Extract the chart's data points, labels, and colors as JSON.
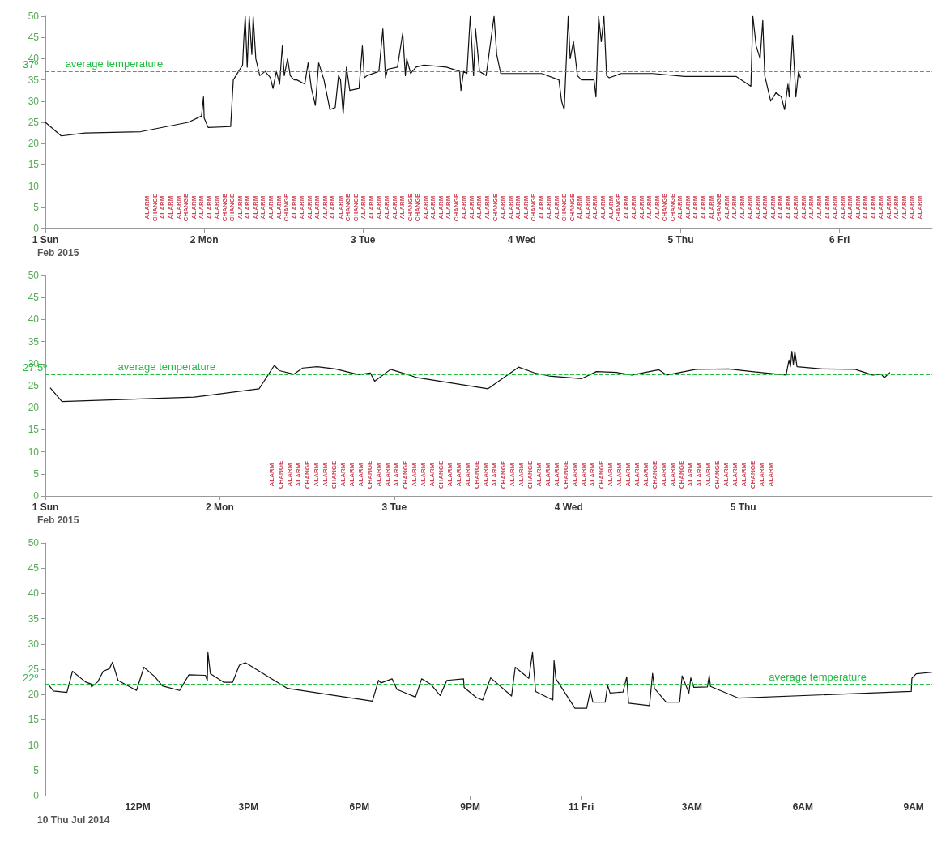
{
  "chart_data": [
    {
      "type": "line",
      "xlabel": "Feb 2015",
      "xlim": [
        "2015-02-01T00:00",
        "2015-02-06T14:00"
      ],
      "ylim": [
        0,
        50
      ],
      "xticks": [
        {
          "value": "2015-02-01T00:00",
          "label": "1 Sun"
        },
        {
          "value": "2015-02-02T00:00",
          "label": "2 Mon"
        },
        {
          "value": "2015-02-03T00:00",
          "label": "3 Tue"
        },
        {
          "value": "2015-02-04T00:00",
          "label": "4 Wed"
        },
        {
          "value": "2015-02-05T00:00",
          "label": "5 Thu"
        },
        {
          "value": "2015-02-06T00:00",
          "label": "6 Fri"
        }
      ],
      "yticks": [
        0,
        5,
        10,
        15,
        20,
        25,
        30,
        35,
        40,
        45,
        50
      ],
      "series": [
        {
          "color": "#111111",
          "x": [
            "2015-02-01T00:00",
            "2015-02-01T02:24",
            "2015-02-01T06:00",
            "2015-02-01T14:24",
            "2015-02-01T21:36",
            "2015-02-01T23:36",
            "2015-02-01T23:54",
            "2015-02-02T00:00",
            "2015-02-02T00:36",
            "2015-02-02T04:00",
            "2015-02-02T04:24",
            "2015-02-02T05:12",
            "2015-02-02T05:48",
            "2015-02-02T06:00",
            "2015-02-02T06:12",
            "2015-02-02T06:30",
            "2015-02-02T06:48",
            "2015-02-02T07:12",
            "2015-02-02T07:24",
            "2015-02-02T07:48",
            "2015-02-02T08:24",
            "2015-02-02T09:12",
            "2015-02-02T10:00",
            "2015-02-02T10:24",
            "2015-02-02T10:54",
            "2015-02-02T11:24",
            "2015-02-02T11:48",
            "2015-02-02T12:06",
            "2015-02-02T12:36",
            "2015-02-02T13:00",
            "2015-02-02T13:36",
            "2015-02-02T14:00",
            "2015-02-02T15:12",
            "2015-02-02T15:42",
            "2015-02-02T16:12",
            "2015-02-02T16:48",
            "2015-02-02T17:18",
            "2015-02-02T18:06",
            "2015-02-02T19:00",
            "2015-02-02T19:48",
            "2015-02-02T20:18",
            "2015-02-02T20:36",
            "2015-02-02T21:00",
            "2015-02-02T21:30",
            "2015-02-02T22:00",
            "2015-02-02T23:24",
            "2015-02-02T23:54",
            "2015-02-03T00:12",
            "2015-02-03T00:36",
            "2015-02-03T02:24",
            "2015-02-03T03:00",
            "2015-02-03T03:24",
            "2015-02-03T03:42",
            "2015-02-03T05:12",
            "2015-02-03T06:00",
            "2015-02-03T06:24",
            "2015-02-03T06:36",
            "2015-02-03T07:12",
            "2015-02-03T08:00",
            "2015-02-03T09:12",
            "2015-02-03T12:36",
            "2015-02-03T14:36",
            "2015-02-03T14:48",
            "2015-02-03T15:12",
            "2015-02-03T15:42",
            "2015-02-03T16:12",
            "2015-02-03T16:42",
            "2015-02-03T17:00",
            "2015-02-03T17:36",
            "2015-02-03T18:36",
            "2015-02-03T19:48",
            "2015-02-03T20:12",
            "2015-02-03T20:48",
            "2015-02-03T21:36",
            "2015-02-04T03:00",
            "2015-02-04T05:36",
            "2015-02-04T06:00",
            "2015-02-04T06:24",
            "2015-02-04T07:00",
            "2015-02-04T07:18",
            "2015-02-04T07:48",
            "2015-02-04T08:24",
            "2015-02-04T09:00",
            "2015-02-04T10:54",
            "2015-02-04T11:12",
            "2015-02-04T11:36",
            "2015-02-04T12:00",
            "2015-02-04T12:24",
            "2015-02-04T12:48",
            "2015-02-04T13:12",
            "2015-02-04T15:00",
            "2015-02-04T19:48",
            "2015-02-05T00:36",
            "2015-02-05T05:24",
            "2015-02-05T08:24",
            "2015-02-05T10:36",
            "2015-02-05T10:54",
            "2015-02-05T11:24",
            "2015-02-05T12:00",
            "2015-02-05T12:24",
            "2015-02-05T12:42",
            "2015-02-05T13:36",
            "2015-02-05T14:24",
            "2015-02-05T15:12",
            "2015-02-05T15:42",
            "2015-02-05T16:12",
            "2015-02-05T16:24",
            "2015-02-05T16:54",
            "2015-02-05T17:24",
            "2015-02-05T17:48",
            "2015-02-05T18:06"
          ],
          "values": [
            25,
            21.8,
            22.5,
            22.8,
            25,
            26.5,
            31,
            26,
            23.8,
            24,
            35,
            37,
            38.5,
            45,
            50,
            38,
            50,
            41,
            50,
            40,
            36,
            37,
            35.5,
            33,
            37,
            34,
            43,
            36,
            40,
            36,
            35,
            35,
            34,
            39,
            33,
            29,
            39,
            35,
            28,
            28.5,
            36,
            35,
            27,
            38,
            32.5,
            33,
            43,
            35.5,
            36,
            37,
            47,
            35.5,
            37.5,
            38,
            46,
            36,
            40,
            36.5,
            38,
            38.5,
            38,
            37,
            32.5,
            37,
            36.5,
            50,
            36,
            47,
            37,
            36,
            50,
            41,
            36.5,
            36.5,
            36.5,
            35,
            30,
            28,
            50,
            40,
            44,
            36,
            35,
            35,
            31,
            50,
            44,
            50,
            36,
            35.5,
            36.5,
            36.5,
            35.8,
            35.8,
            35.8,
            33.5,
            50,
            43,
            40,
            49,
            36,
            30,
            32,
            31,
            28,
            34,
            31,
            45.5,
            31,
            37,
            35.5
          ]
        }
      ],
      "ref_lines": [
        {
          "axis": "y",
          "value": 37,
          "label": "37º",
          "color": "#22bb44",
          "line_style": "dashed"
        }
      ],
      "annotations": [
        {
          "text": "average temperature",
          "x": "2015-02-01T10:24",
          "y": 37
        },
        "ALARM",
        "CHANGE",
        "ALARM",
        "ALARM",
        "ALARM",
        "CHANGE",
        "ALARM",
        "ALARM",
        "ALARM",
        "ALARM",
        "CHANGE",
        "CHANGE",
        "ALARM",
        "ALARM",
        "ALARM",
        "ALARM",
        "ALARM",
        "ALARM",
        "CHANGE",
        "ALARM",
        "ALARM",
        "ALARM",
        "ALARM",
        "ALARM",
        "ALARM",
        "ALARM",
        "CHANGE",
        "CHANGE",
        "ALARM",
        "ALARM",
        "ALARM",
        "ALARM",
        "ALARM",
        "ALARM",
        "CHANGE",
        "CHANGE",
        "ALARM",
        "ALARM",
        "ALARM",
        "ALARM",
        "CHANGE",
        "ALARM",
        "ALARM",
        "ALARM",
        "ALARM",
        "CHANGE",
        "ALARM",
        "ALARM",
        "ALARM",
        "ALARM",
        "CHANGE",
        "ALARM",
        "ALARM",
        "ALARM",
        "CHANGE",
        "CHANGE",
        "ALARM",
        "ALARM",
        "ALARM",
        "ALARM",
        "ALARM",
        "CHANGE",
        "ALARM",
        "ALARM",
        "ALARM",
        "ALARM",
        "ALARM",
        "CHANGE",
        "CHANGE",
        "ALARM",
        "ALARM",
        "ALARM",
        "ALARM",
        "ALARM",
        "CHANGE",
        "ALARM",
        "ALARM",
        "ALARM",
        "ALARM",
        "ALARM",
        "ALARM",
        "ALARM",
        "ALARM",
        "ALARM",
        "ALARM",
        "ALARM",
        "ALARM",
        "ALARM",
        "ALARM",
        "ALARM",
        "ALARM",
        "ALARM",
        "ALARM",
        "ALARM",
        "ALARM",
        "ALARM",
        "ALARM",
        "ALARM",
        "ALARM",
        "ALARM",
        "ALARM"
      ]
    },
    {
      "type": "line",
      "xlabel": "Feb 2015",
      "xlim": [
        "2015-02-01T00:00",
        "2015-02-06T02:00"
      ],
      "ylim": [
        0,
        50
      ],
      "xticks": [
        {
          "value": "2015-02-01T00:00",
          "label": "1 Sun"
        },
        {
          "value": "2015-02-02T00:00",
          "label": "2 Mon"
        },
        {
          "value": "2015-02-03T00:00",
          "label": "3 Tue"
        },
        {
          "value": "2015-02-04T00:00",
          "label": "4 Wed"
        },
        {
          "value": "2015-02-05T00:00",
          "label": "5 Thu"
        }
      ],
      "yticks": [
        0,
        5,
        10,
        15,
        20,
        25,
        30,
        35,
        40,
        45,
        50
      ],
      "series": [
        {
          "color": "#111111",
          "x": [
            "2015-02-01T00:40",
            "2015-02-01T02:17",
            "2015-02-01T20:30",
            "2015-02-02T05:24",
            "2015-02-02T07:30",
            "2015-02-02T08:12",
            "2015-02-02T10:12",
            "2015-02-02T11:24",
            "2015-02-02T13:24",
            "2015-02-02T15:54",
            "2015-02-02T19:06",
            "2015-02-02T20:42",
            "2015-02-02T21:18",
            "2015-02-02T23:30",
            "2015-02-03T03:12",
            "2015-02-03T12:54",
            "2015-02-03T17:06",
            "2015-02-03T19:18",
            "2015-02-03T21:18",
            "2015-02-04T01:48",
            "2015-02-04T03:48",
            "2015-02-04T06:36",
            "2015-02-04T08:42",
            "2015-02-04T12:24",
            "2015-02-04T13:30",
            "2015-02-04T17:30",
            "2015-02-04T22:00",
            "2015-02-05T01:12",
            "2015-02-05T05:54",
            "2015-02-05T06:18",
            "2015-02-05T06:30",
            "2015-02-05T06:42",
            "2015-02-05T06:54",
            "2015-02-05T07:06",
            "2015-02-05T07:24",
            "2015-02-05T10:54",
            "2015-02-05T15:24",
            "2015-02-05T17:48",
            "2015-02-05T19:00",
            "2015-02-05T19:24",
            "2015-02-05T20:12"
          ],
          "values": [
            24.5,
            21.4,
            22.4,
            24.3,
            29.6,
            28.4,
            27.6,
            29,
            29.3,
            28.8,
            27.5,
            27.9,
            26,
            28.7,
            26.8,
            24.3,
            29.2,
            27.9,
            27.2,
            26.6,
            28.2,
            28,
            27.4,
            28.6,
            27.4,
            28.7,
            28.8,
            28.2,
            27.4,
            30.8,
            29.3,
            32.8,
            29.8,
            32.8,
            29.3,
            28.8,
            28.7,
            27.4,
            27.6,
            26.8,
            28
          ]
        }
      ],
      "ref_lines": [
        {
          "axis": "y",
          "value": 27.5,
          "label": "27,5º",
          "color": "#22bb44",
          "line_style": "dashed"
        }
      ],
      "annotations": [
        {
          "text": "average temperature",
          "x": "2015-02-01T16:42",
          "y": 27.5
        },
        "ALARM",
        "CHANGE",
        "ALARM",
        "ALARM",
        "CHANGE",
        "ALARM",
        "ALARM",
        "CHANGE",
        "ALARM",
        "ALARM",
        "ALARM",
        "CHANGE",
        "ALARM",
        "ALARM",
        "ALARM",
        "CHANGE",
        "ALARM",
        "ALARM",
        "ALARM",
        "CHANGE",
        "ALARM",
        "ALARM",
        "ALARM",
        "CHANGE",
        "ALARM",
        "ALARM",
        "CHANGE",
        "ALARM",
        "ALARM",
        "CHANGE",
        "ALARM",
        "ALARM",
        "ALARM",
        "CHANGE",
        "ALARM",
        "ALARM",
        "ALARM",
        "CHANGE",
        "ALARM",
        "ALARM",
        "ALARM",
        "ALARM",
        "ALARM",
        "CHANGE",
        "ALARM",
        "ALARM",
        "CHANGE",
        "ALARM",
        "ALARM",
        "ALARM",
        "CHANGE",
        "ALARM",
        "ALARM",
        "ALARM",
        "CHANGE",
        "ALARM",
        "ALARM"
      ]
    },
    {
      "type": "line",
      "xlabel": "10 Thu Jul 2014",
      "xlim": [
        "2014-07-10T09:30",
        "2014-07-11T09:30"
      ],
      "ylim": [
        0,
        50
      ],
      "xticks": [
        {
          "value": "2014-07-10T12:00",
          "label": "12PM"
        },
        {
          "value": "2014-07-10T15:00",
          "label": "3PM"
        },
        {
          "value": "2014-07-10T18:00",
          "label": "6PM"
        },
        {
          "value": "2014-07-10T21:00",
          "label": "9PM"
        },
        {
          "value": "2014-07-11T00:00",
          "label": "11 Fri"
        },
        {
          "value": "2014-07-11T03:00",
          "label": "3AM"
        },
        {
          "value": "2014-07-11T06:00",
          "label": "6AM"
        },
        {
          "value": "2014-07-11T09:00",
          "label": "9AM"
        }
      ],
      "yticks": [
        0,
        5,
        10,
        15,
        20,
        25,
        30,
        35,
        40,
        45,
        50
      ],
      "series": [
        {
          "color": "#111111",
          "x": [
            "2014-07-10T09:34",
            "2014-07-10T09:43",
            "2014-07-10T10:05",
            "2014-07-10T10:14",
            "2014-07-10T10:35",
            "2014-07-10T10:44",
            "2014-07-10T10:45",
            "2014-07-10T10:55",
            "2014-07-10T11:04",
            "2014-07-10T11:14",
            "2014-07-10T11:19",
            "2014-07-10T11:28",
            "2014-07-10T11:58",
            "2014-07-10T12:10",
            "2014-07-10T12:28",
            "2014-07-10T12:40",
            "2014-07-10T13:08",
            "2014-07-10T13:23",
            "2014-07-10T13:50",
            "2014-07-10T13:53",
            "2014-07-10T13:54",
            "2014-07-10T13:58",
            "2014-07-10T14:20",
            "2014-07-10T14:34",
            "2014-07-10T14:45",
            "2014-07-10T14:55",
            "2014-07-10T16:03",
            "2014-07-10T18:21",
            "2014-07-10T18:31",
            "2014-07-10T18:35",
            "2014-07-10T18:53",
            "2014-07-10T19:01",
            "2014-07-10T19:31",
            "2014-07-10T19:41",
            "2014-07-10T19:56",
            "2014-07-10T20:11",
            "2014-07-10T20:22",
            "2014-07-10T20:49",
            "2014-07-10T20:50",
            "2014-07-10T21:10",
            "2014-07-10T21:20",
            "2014-07-10T21:33",
            "2014-07-10T22:07",
            "2014-07-10T22:13",
            "2014-07-10T22:35",
            "2014-07-10T22:41",
            "2014-07-10T22:46",
            "2014-07-10T23:14",
            "2014-07-10T23:16",
            "2014-07-10T23:19",
            "2014-07-10T23:50",
            "2014-07-11T00:09",
            "2014-07-11T00:15",
            "2014-07-11T00:19",
            "2014-07-11T00:39",
            "2014-07-11T00:43",
            "2014-07-11T00:47",
            "2014-07-11T01:08",
            "2014-07-11T01:14",
            "2014-07-11T01:17",
            "2014-07-11T01:51",
            "2014-07-11T01:56",
            "2014-07-11T01:59",
            "2014-07-11T02:18",
            "2014-07-11T02:40",
            "2014-07-11T02:44",
            "2014-07-11T02:55",
            "2014-07-11T02:58",
            "2014-07-11T03:03",
            "2014-07-11T03:25",
            "2014-07-11T03:28",
            "2014-07-11T03:30",
            "2014-07-11T04:15",
            "2014-07-11T08:56",
            "2014-07-11T08:57",
            "2014-07-11T09:04",
            "2014-07-11T09:30"
          ],
          "values": [
            22.1,
            20.7,
            20.4,
            24.6,
            22.5,
            22.1,
            21.5,
            22.5,
            24.6,
            25.1,
            26.4,
            22.8,
            20.8,
            25.4,
            23.5,
            21.7,
            20.8,
            23.9,
            23.8,
            22.7,
            28.3,
            24.1,
            22.4,
            22.4,
            25.8,
            26.3,
            21.2,
            18.7,
            22.8,
            22.3,
            23.1,
            21,
            19.5,
            23.1,
            22,
            19.8,
            22.8,
            23.1,
            21.4,
            19.4,
            18.9,
            23.3,
            19.7,
            25.4,
            23.2,
            28.3,
            20.6,
            18.9,
            26.7,
            23.1,
            17.3,
            17.3,
            20.8,
            18.5,
            18.5,
            21.8,
            20.3,
            20.5,
            23.5,
            18.3,
            17.8,
            24.2,
            21.2,
            18.5,
            18.5,
            23.7,
            20.3,
            23.3,
            21.4,
            21.5,
            23.8,
            21.6,
            19.3,
            20.6,
            23.2,
            24.1,
            24.4
          ]
        }
      ],
      "ref_lines": [
        {
          "axis": "y",
          "value": 22,
          "label": "22º",
          "color": "#22bb44",
          "line_style": "dashed"
        }
      ],
      "annotations": [
        {
          "text": "average temperature",
          "x": "2014-07-11T06:24",
          "y": 22
        }
      ]
    }
  ]
}
